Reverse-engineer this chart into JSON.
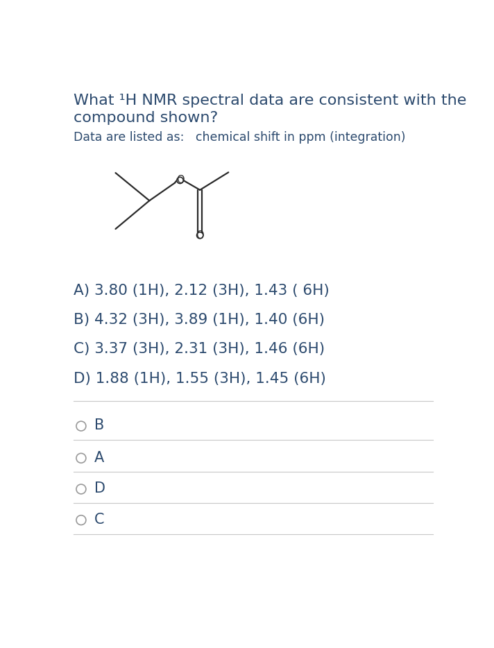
{
  "title_line1": "What ¹H NMR spectral data are consistent with the",
  "title_line2": "compound shown?",
  "subtitle": "Data are listed as:   chemical shift in ppm (integration)",
  "options": [
    "A) 3.80 (1H), 2.12 (3H), 1.43 ( 6H)",
    "B) 4.32 (3H), 3.89 (1H), 1.40 (6H)",
    "C) 3.37 (3H), 2.31 (3H), 1.46 (6H)",
    "D) 1.88 (1H), 1.55 (3H), 1.45 (6H)"
  ],
  "answer_choices": [
    "B",
    "A",
    "D",
    "C"
  ],
  "bg_color": "#ffffff",
  "text_color": "#2c4a6e",
  "divider_color": "#c8c8c8",
  "mol_color": "#2a2a2a",
  "font_size_title": 16,
  "font_size_subtitle": 12.5,
  "font_size_options": 15.5,
  "font_size_answers": 15,
  "font_size_mol_label": 10.5
}
